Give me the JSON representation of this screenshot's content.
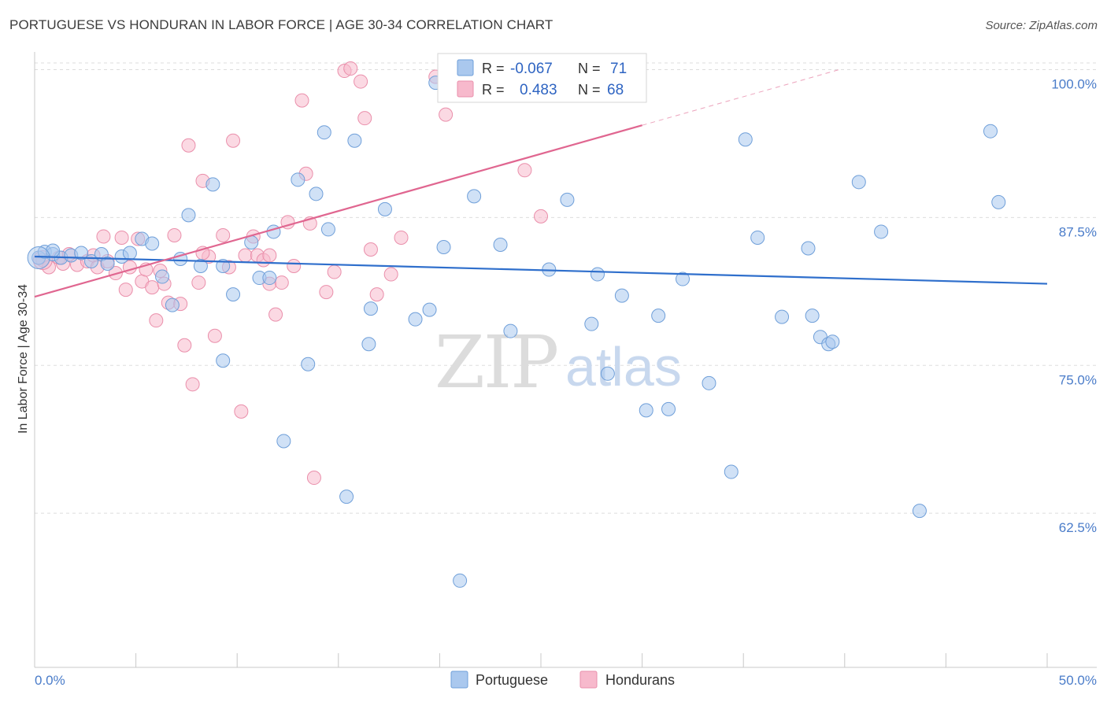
{
  "title": "PORTUGUESE VS HONDURAN IN LABOR FORCE | AGE 30-34 CORRELATION CHART",
  "source": "Source: ZipAtlas.com",
  "watermark": {
    "zip": "ZIP",
    "atlas": "atlas"
  },
  "legend_top": {
    "rows": [
      {
        "r_label": "R =",
        "r_value": "-0.067",
        "n_label": "N =",
        "n_value": "71"
      },
      {
        "r_label": "R =",
        "r_value": "0.483",
        "n_label": "N =",
        "n_value": "68"
      }
    ]
  },
  "legend_bottom": {
    "items": [
      "Portuguese",
      "Hondurans"
    ]
  },
  "colors": {
    "portuguese_fill": "#aac8ee",
    "portuguese_stroke": "#6f9fd9",
    "portuguese_line": "#2f6fcc",
    "hondurans_fill": "#f7b9cc",
    "hondurans_stroke": "#ea8fab",
    "hondurans_line": "#e06690",
    "grid": "#dddddd",
    "tick_text": "#4a7cc9"
  },
  "chart_data": {
    "type": "scatter",
    "title": "PORTUGUESE VS HONDURAN IN LABOR FORCE | AGE 30-34 CORRELATION CHART",
    "xlabel": "",
    "ylabel": "In Labor Force | Age 30-34",
    "xlim": [
      0,
      50
    ],
    "ylim": [
      50,
      101.5
    ],
    "x_tick_labels": [
      "0.0%",
      "50.0%"
    ],
    "y_ticks": [
      62.5,
      75.0,
      87.5,
      100.0
    ],
    "y_tick_labels": [
      "62.5%",
      "75.0%",
      "87.5%",
      "100.0%"
    ],
    "grid": "horizontal dashed",
    "series": [
      {
        "name": "Portuguese",
        "trend": {
          "x": [
            0,
            50
          ],
          "y": [
            84.2,
            81.9
          ]
        },
        "points": [
          [
            0.2,
            84.1
          ],
          [
            0.5,
            84.6
          ],
          [
            0.9,
            84.4
          ],
          [
            1.3,
            84.1
          ],
          [
            1.8,
            84.3
          ],
          [
            2.3,
            84.5
          ],
          [
            2.8,
            83.8
          ],
          [
            3.3,
            84.4
          ],
          [
            4.3,
            84.2
          ],
          [
            5.3,
            85.7
          ],
          [
            5.8,
            85.3
          ],
          [
            6.3,
            82.5
          ],
          [
            7.2,
            84.0
          ],
          [
            7.6,
            87.7
          ],
          [
            8.2,
            83.4
          ],
          [
            8.8,
            90.3
          ],
          [
            9.3,
            83.4
          ],
          [
            9.8,
            81.0
          ],
          [
            10.7,
            85.4
          ],
          [
            11.1,
            82.4
          ],
          [
            11.6,
            82.4
          ],
          [
            11.8,
            86.3
          ],
          [
            13.0,
            90.7
          ],
          [
            13.5,
            75.1
          ],
          [
            13.9,
            89.5
          ],
          [
            14.3,
            94.7
          ],
          [
            14.5,
            86.5
          ],
          [
            15.8,
            94.0
          ],
          [
            16.5,
            76.8
          ],
          [
            16.6,
            79.8
          ],
          [
            17.3,
            88.2
          ],
          [
            18.8,
            78.9
          ],
          [
            19.5,
            79.7
          ],
          [
            19.8,
            98.9
          ],
          [
            20.2,
            85.0
          ],
          [
            21.7,
            89.3
          ],
          [
            23.0,
            85.2
          ],
          [
            23.5,
            77.9
          ],
          [
            25.4,
            83.1
          ],
          [
            26.3,
            89.0
          ],
          [
            27.5,
            78.5
          ],
          [
            28.3,
            74.3
          ],
          [
            27.8,
            82.7
          ],
          [
            29.0,
            80.9
          ],
          [
            30.2,
            71.2
          ],
          [
            30.8,
            79.2
          ],
          [
            31.3,
            71.3
          ],
          [
            32.0,
            82.3
          ],
          [
            33.3,
            73.5
          ],
          [
            34.4,
            66.0
          ],
          [
            35.1,
            94.1
          ],
          [
            35.7,
            85.8
          ],
          [
            36.9,
            79.1
          ],
          [
            38.2,
            84.9
          ],
          [
            38.4,
            79.2
          ],
          [
            38.8,
            77.4
          ],
          [
            39.2,
            76.8
          ],
          [
            39.4,
            77.0
          ],
          [
            40.7,
            90.5
          ],
          [
            41.8,
            86.3
          ],
          [
            43.7,
            62.7
          ],
          [
            47.2,
            94.8
          ],
          [
            47.6,
            88.8
          ],
          [
            21.0,
            56.8
          ],
          [
            12.3,
            68.6
          ],
          [
            15.4,
            63.9
          ],
          [
            9.3,
            75.4
          ],
          [
            6.8,
            80.1
          ],
          [
            0.9,
            84.7
          ],
          [
            4.7,
            84.5
          ],
          [
            3.6,
            83.6
          ]
        ]
      },
      {
        "name": "Hondurans",
        "trend": {
          "x": [
            0,
            30
          ],
          "y": [
            80.8,
            95.3
          ]
        },
        "points": [
          [
            0.4,
            83.9
          ],
          [
            0.7,
            83.3
          ],
          [
            1.2,
            84.1
          ],
          [
            1.4,
            83.6
          ],
          [
            1.7,
            84.4
          ],
          [
            2.1,
            83.5
          ],
          [
            2.6,
            83.8
          ],
          [
            2.9,
            84.3
          ],
          [
            3.1,
            83.3
          ],
          [
            3.4,
            85.9
          ],
          [
            3.6,
            83.8
          ],
          [
            4.0,
            82.8
          ],
          [
            4.3,
            85.8
          ],
          [
            4.5,
            81.4
          ],
          [
            4.7,
            83.3
          ],
          [
            5.1,
            85.7
          ],
          [
            5.3,
            82.1
          ],
          [
            5.5,
            83.1
          ],
          [
            5.8,
            81.6
          ],
          [
            6.0,
            78.8
          ],
          [
            6.2,
            83.0
          ],
          [
            6.4,
            81.9
          ],
          [
            6.6,
            80.3
          ],
          [
            6.9,
            86.0
          ],
          [
            7.2,
            80.2
          ],
          [
            7.4,
            76.7
          ],
          [
            7.6,
            93.6
          ],
          [
            7.8,
            73.4
          ],
          [
            8.1,
            82.0
          ],
          [
            8.3,
            90.6
          ],
          [
            8.6,
            84.2
          ],
          [
            8.9,
            77.5
          ],
          [
            9.3,
            86.0
          ],
          [
            9.6,
            83.3
          ],
          [
            9.8,
            94.0
          ],
          [
            10.2,
            71.1
          ],
          [
            10.4,
            84.3
          ],
          [
            10.8,
            85.9
          ],
          [
            11.0,
            84.3
          ],
          [
            11.3,
            83.9
          ],
          [
            11.6,
            81.9
          ],
          [
            11.9,
            79.3
          ],
          [
            12.2,
            82.0
          ],
          [
            12.5,
            87.1
          ],
          [
            12.8,
            83.4
          ],
          [
            13.2,
            97.4
          ],
          [
            13.4,
            91.2
          ],
          [
            13.6,
            87.0
          ],
          [
            13.8,
            65.5
          ],
          [
            14.4,
            81.2
          ],
          [
            14.8,
            82.9
          ],
          [
            15.3,
            99.9
          ],
          [
            15.6,
            100.1
          ],
          [
            16.1,
            99.0
          ],
          [
            16.3,
            95.9
          ],
          [
            16.6,
            84.8
          ],
          [
            16.9,
            81.0
          ],
          [
            17.6,
            82.7
          ],
          [
            18.1,
            85.8
          ],
          [
            19.8,
            99.4
          ],
          [
            20.3,
            96.2
          ],
          [
            24.2,
            91.5
          ],
          [
            25.0,
            87.6
          ],
          [
            27.0,
            100.1
          ],
          [
            28.6,
            100.0
          ],
          [
            23.7,
            99.9
          ],
          [
            11.6,
            84.3
          ],
          [
            8.3,
            84.5
          ]
        ]
      }
    ]
  }
}
